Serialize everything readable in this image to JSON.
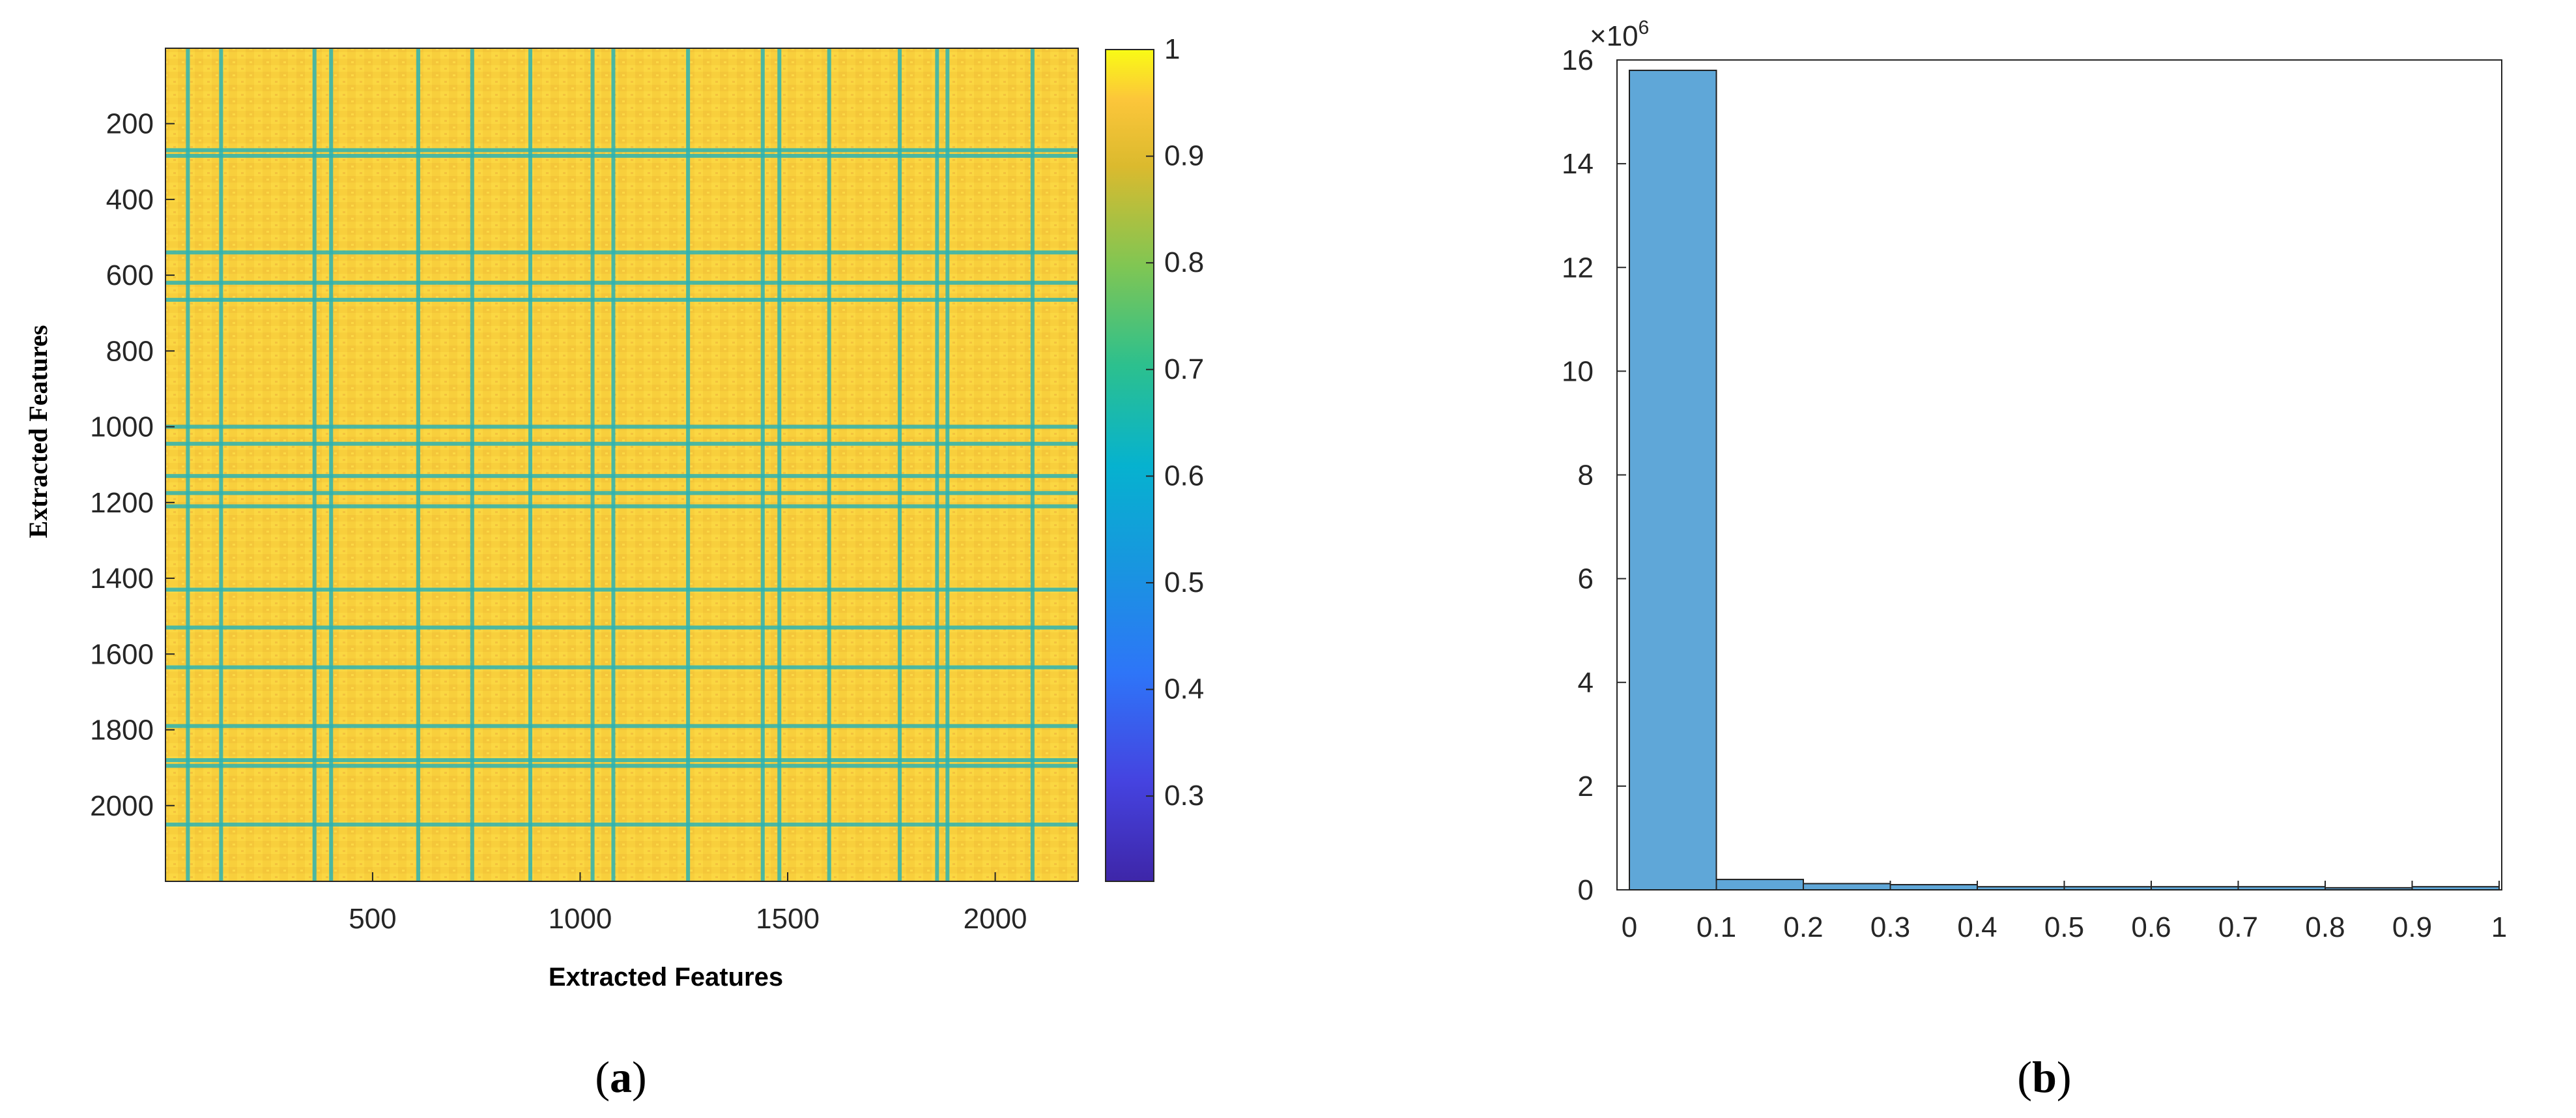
{
  "chart_data": [
    {
      "panel_label": "a",
      "type": "heatmap",
      "xlabel": "Extracted Features",
      "ylabel": "Extracted Features",
      "xlim": [
        1,
        2200
      ],
      "ylim": [
        1,
        2200
      ],
      "y_reversed": true,
      "x_ticks": [
        500,
        1000,
        1500,
        2000
      ],
      "y_ticks": [
        200,
        400,
        600,
        800,
        1000,
        1200,
        1400,
        1600,
        1800,
        2000
      ],
      "colorbar": {
        "min": 0.22,
        "max": 1,
        "ticks": [
          0.3,
          0.4,
          0.5,
          0.6,
          0.7,
          0.8,
          0.9,
          1
        ],
        "tick_labels": [
          "0.3",
          "0.4",
          "0.5",
          "0.6",
          "0.7",
          "0.8",
          "0.9",
          "1"
        ],
        "colormap": "parula"
      },
      "background_value": 0.9,
      "low_similarity_rows": [
        270,
        285,
        540,
        620,
        665,
        1000,
        1045,
        1130,
        1175,
        1210,
        1430,
        1530,
        1635,
        1790,
        1880,
        1895,
        2050
      ],
      "low_similarity_cols": [
        55,
        135,
        360,
        400,
        610,
        740,
        880,
        1030,
        1080,
        1260,
        1440,
        1480,
        1600,
        1770,
        1860,
        1885,
        2090
      ],
      "line_value": 0.6
    },
    {
      "panel_label": "b",
      "type": "bar",
      "xlabel": "",
      "ylabel": "",
      "y_exponent_label": "×10",
      "y_exponent": "6",
      "bin_edges": [
        0,
        0.1,
        0.2,
        0.3,
        0.4,
        0.5,
        0.6,
        0.7,
        0.8,
        0.9,
        1
      ],
      "values": [
        15.8,
        0.2,
        0.12,
        0.1,
        0.06,
        0.06,
        0.06,
        0.06,
        0.04,
        0.06
      ],
      "xlim": [
        -0.05,
        1.0
      ],
      "ylim": [
        0,
        16
      ],
      "x_ticks": [
        "0",
        "0.1",
        "0.2",
        "0.3",
        "0.4",
        "0.5",
        "0.6",
        "0.7",
        "0.8",
        "0.9",
        "1"
      ],
      "y_ticks": [
        0,
        2,
        4,
        6,
        8,
        10,
        12,
        14,
        16
      ],
      "bar_color": "#5fa7d8",
      "bar_edge_color": "#1e1e1e"
    }
  ],
  "colors": {
    "heat_background": "#f7d13a",
    "heat_speckle": "#ffe34b",
    "heat_line": "#2db3b3"
  }
}
